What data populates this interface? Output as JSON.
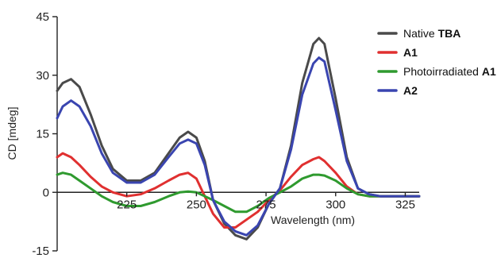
{
  "chart_data": {
    "type": "line",
    "xlabel": "Wavelength (nm)",
    "ylabel": "CD [mdeg]",
    "xlim": [
      200,
      330
    ],
    "ylim": [
      -15,
      45
    ],
    "xticks": [
      225,
      250,
      275,
      300,
      325
    ],
    "yticks": [
      -15,
      0,
      15,
      30,
      45
    ],
    "xtick_labels": [
      "225",
      "250",
      "275",
      "300",
      "325"
    ],
    "ytick_labels": [
      "-15",
      "0",
      "15",
      "30",
      "45"
    ],
    "legend_position": "top-right",
    "grid": false,
    "series": [
      {
        "name": "Native TBA",
        "legend_prefix": "Native ",
        "legend_bold": "TBA",
        "color": "#4a4a4a",
        "x": [
          200,
          202,
          205,
          208,
          212,
          216,
          220,
          225,
          230,
          235,
          240,
          244,
          247,
          250,
          253,
          256,
          260,
          264,
          268,
          272,
          276,
          280,
          284,
          288,
          292,
          294,
          296,
          300,
          304,
          308,
          312,
          316,
          320,
          325,
          330
        ],
        "y": [
          26,
          28,
          29,
          27,
          20,
          12,
          6,
          3,
          3,
          5,
          10,
          14,
          15.5,
          14,
          8,
          -2,
          -8,
          -11,
          -12,
          -9,
          -3,
          1,
          12,
          28,
          38,
          39.5,
          38,
          24,
          9,
          1,
          -0.5,
          -1,
          -1,
          -1,
          -1
        ]
      },
      {
        "name": "A1",
        "legend_prefix": "",
        "legend_bold": "A1",
        "color": "#e03030",
        "x": [
          200,
          202,
          205,
          208,
          212,
          216,
          220,
          225,
          230,
          235,
          240,
          244,
          247,
          250,
          253,
          256,
          260,
          264,
          268,
          272,
          276,
          280,
          284,
          288,
          292,
          294,
          296,
          300,
          304,
          308,
          312,
          316,
          320,
          325,
          330
        ],
        "y": [
          9,
          10,
          9,
          7,
          4,
          1.5,
          0,
          -1,
          -0.5,
          1,
          3,
          4.5,
          5,
          3.5,
          -1,
          -5.5,
          -9,
          -9,
          -7,
          -5,
          -2,
          0.5,
          4,
          7,
          8.5,
          9,
          8,
          5,
          1.5,
          -0.5,
          -1,
          -1,
          -1,
          -1,
          -1
        ]
      },
      {
        "name": "Photoirradiated A1",
        "legend_prefix": "Photoirradiated ",
        "legend_bold": "A1",
        "color": "#2f9a2f",
        "x": [
          200,
          202,
          205,
          208,
          212,
          216,
          220,
          225,
          230,
          235,
          240,
          244,
          247,
          250,
          253,
          256,
          260,
          264,
          268,
          272,
          276,
          280,
          284,
          288,
          292,
          294,
          296,
          300,
          304,
          308,
          312,
          316,
          320,
          325,
          330
        ],
        "y": [
          4.5,
          5,
          4.5,
          3,
          1,
          -1,
          -2.5,
          -3.5,
          -3.5,
          -2.5,
          -1,
          0,
          0.2,
          0,
          -1,
          -2,
          -3.5,
          -5,
          -5,
          -3.5,
          -1.5,
          0,
          1.5,
          3.5,
          4.5,
          4.5,
          4.3,
          3,
          1,
          -0.5,
          -1,
          -1,
          -1,
          -1,
          -1
        ]
      },
      {
        "name": "A2",
        "legend_prefix": "",
        "legend_bold": "A2",
        "color": "#3a45b0",
        "x": [
          200,
          202,
          205,
          208,
          212,
          216,
          220,
          225,
          230,
          235,
          240,
          244,
          247,
          250,
          253,
          256,
          260,
          264,
          268,
          272,
          276,
          280,
          284,
          288,
          292,
          294,
          296,
          300,
          304,
          308,
          312,
          316,
          320,
          325,
          330
        ],
        "y": [
          19,
          22,
          23.5,
          22,
          17,
          10,
          5,
          2.5,
          2.5,
          4.5,
          9,
          12.5,
          13.5,
          12.5,
          7,
          -2,
          -7.5,
          -10,
          -11,
          -8.5,
          -3,
          1,
          11,
          25,
          33,
          34.5,
          33.5,
          21,
          8,
          1,
          -0.5,
          -1,
          -1,
          -1,
          -1
        ]
      }
    ]
  }
}
